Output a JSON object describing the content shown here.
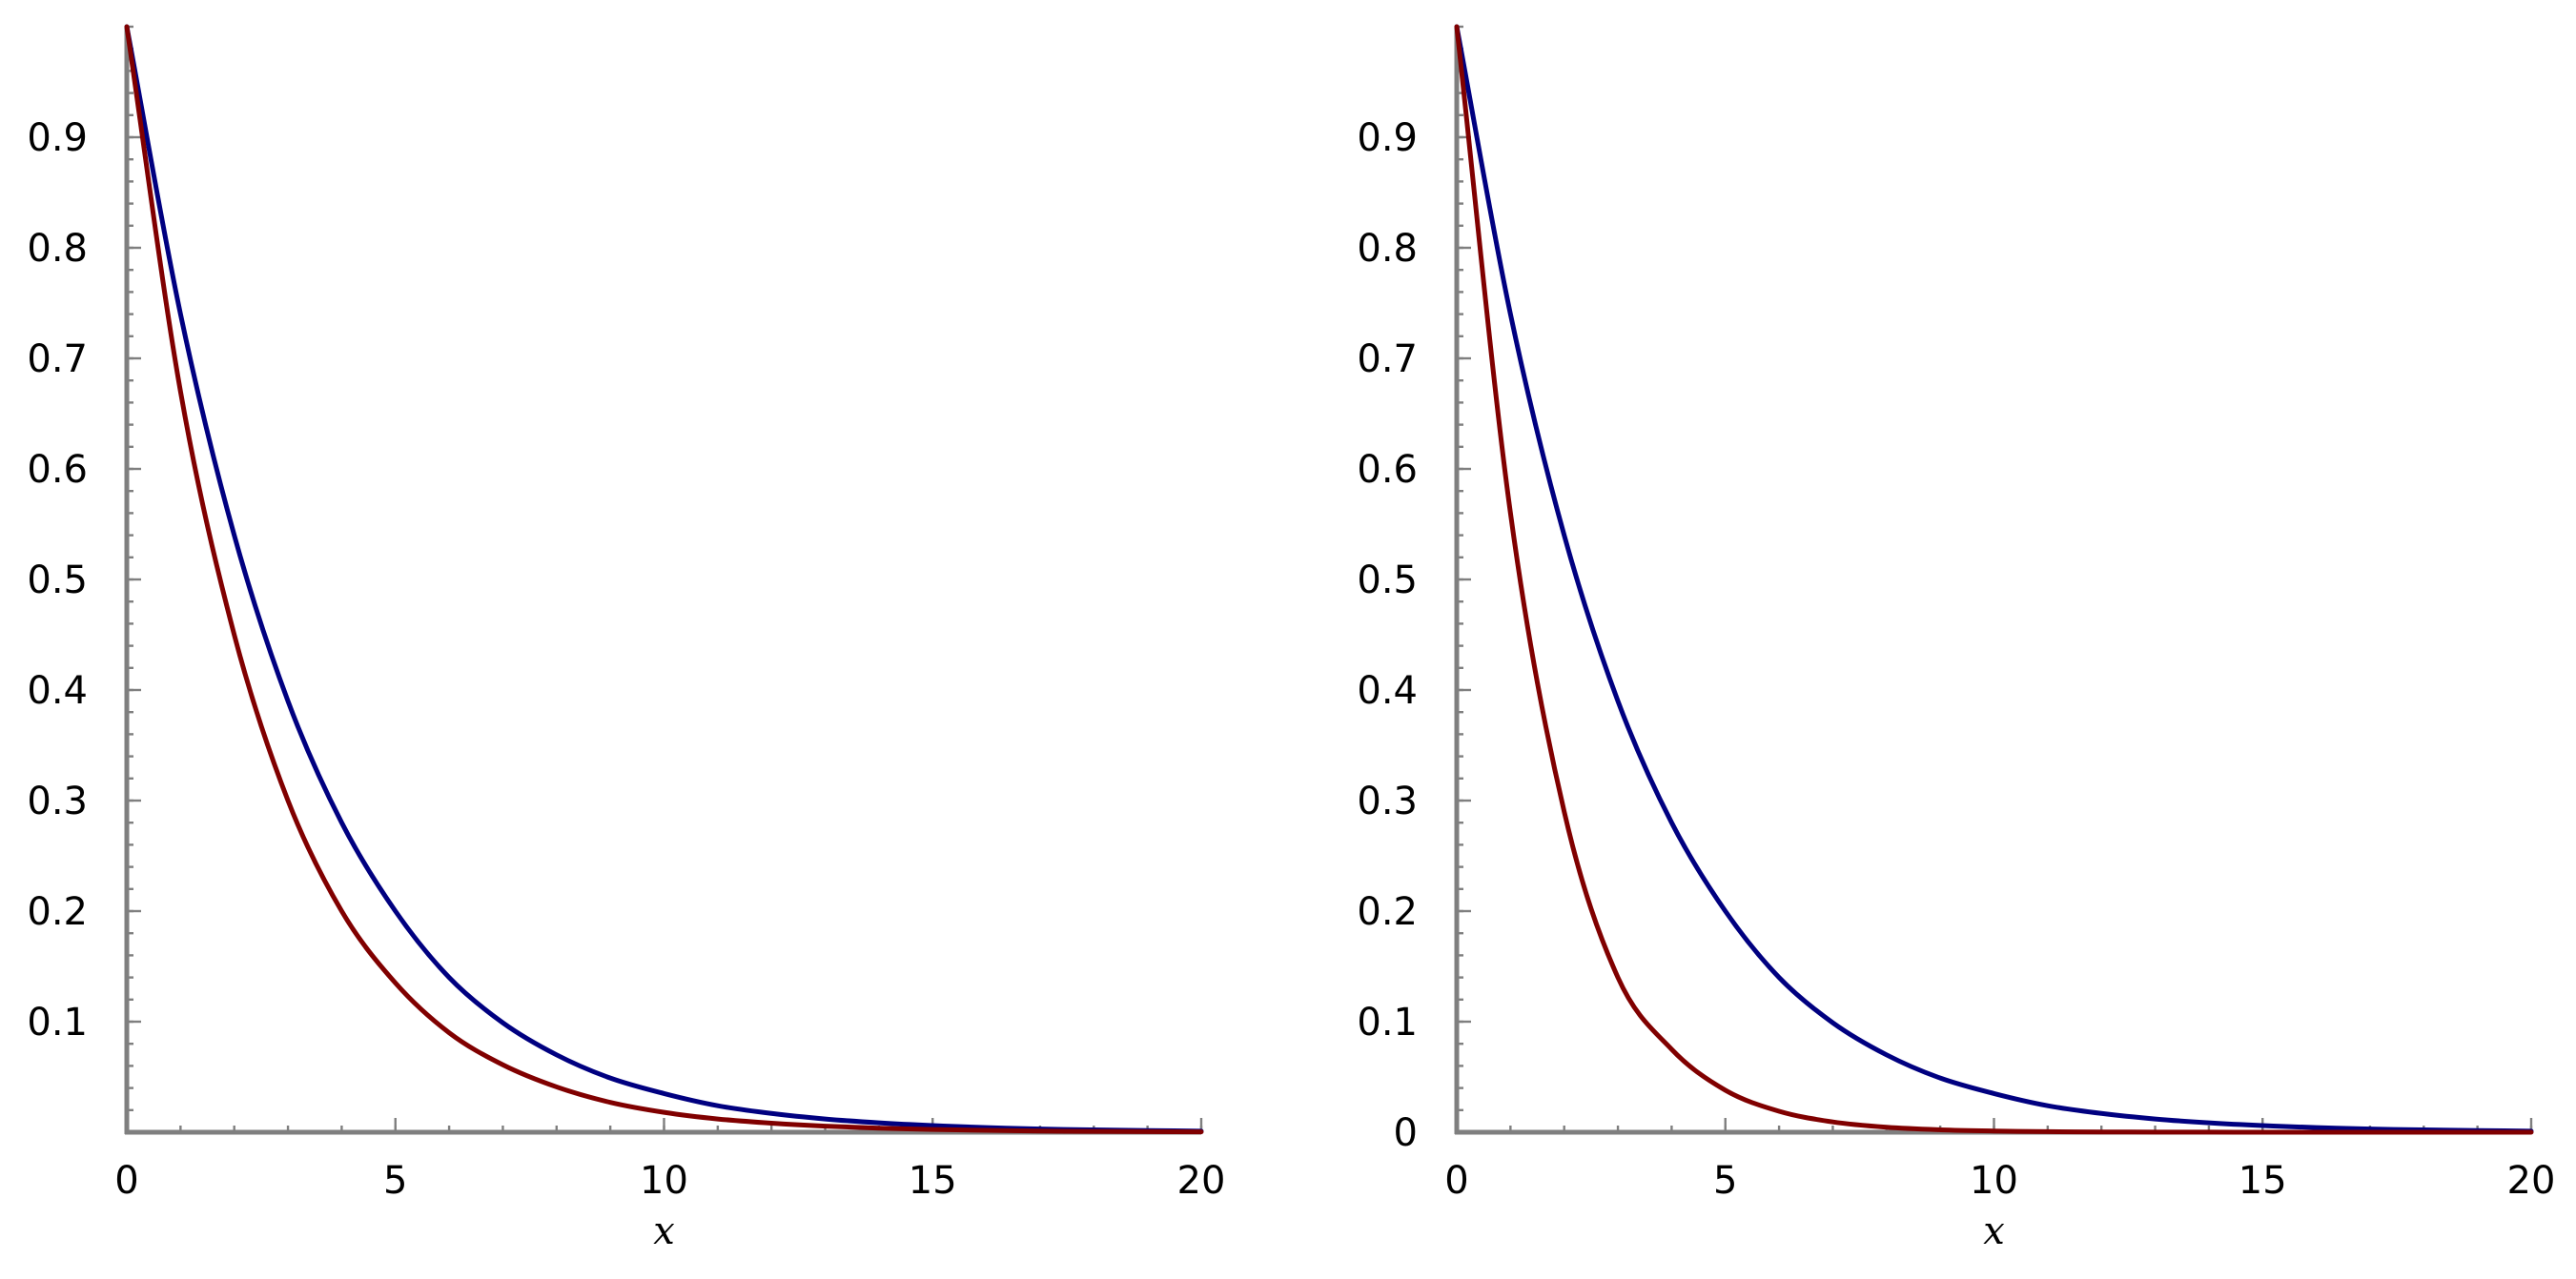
{
  "chart_data": [
    {
      "type": "line",
      "xlabel": "x",
      "ylabel": "",
      "xlim": [
        0,
        20
      ],
      "ylim": [
        0,
        1
      ],
      "grid": false,
      "x_ticks": [
        0,
        5,
        10,
        15,
        20
      ],
      "x_tick_labels": [
        "0",
        "5",
        "10",
        "15",
        "20"
      ],
      "y_ticks": [
        0.1,
        0.2,
        0.3,
        0.4,
        0.5,
        0.6,
        0.7,
        0.8,
        0.9
      ],
      "y_tick_labels": [
        "0.1",
        "0.2",
        "0.3",
        "0.4",
        "0.5",
        "0.6",
        "0.7",
        "0.8",
        "0.9"
      ],
      "x": [
        0,
        1,
        2,
        3,
        4,
        5,
        6,
        7,
        8,
        9,
        10,
        11,
        12,
        13,
        14,
        15,
        16,
        17,
        18,
        19,
        20
      ],
      "series": [
        {
          "color": "#000080",
          "values": [
            1.0,
            0.74,
            0.54,
            0.39,
            0.28,
            0.2,
            0.14,
            0.099,
            0.07,
            0.049,
            0.035,
            0.024,
            0.017,
            0.012,
            0.0085,
            0.006,
            0.0042,
            0.0029,
            0.0021,
            0.0015,
            0.001
          ]
        },
        {
          "color": "#800000",
          "values": [
            1.0,
            0.67,
            0.45,
            0.3,
            0.2,
            0.135,
            0.09,
            0.061,
            0.041,
            0.027,
            0.018,
            0.012,
            0.0082,
            0.0055,
            0.0037,
            0.0025,
            0.0017,
            0.0011,
            0.00075,
            0.0005,
            0.0003
          ]
        }
      ]
    },
    {
      "type": "line",
      "xlabel": "x",
      "ylabel": "",
      "xlim": [
        0,
        20
      ],
      "ylim": [
        0,
        1
      ],
      "grid": false,
      "x_ticks": [
        0,
        5,
        10,
        15,
        20
      ],
      "x_tick_labels": [
        "0",
        "5",
        "10",
        "15",
        "20"
      ],
      "y_ticks": [
        0,
        0.1,
        0.2,
        0.3,
        0.4,
        0.5,
        0.6,
        0.7,
        0.8,
        0.9
      ],
      "y_tick_labels": [
        "0",
        "0.1",
        "0.2",
        "0.3",
        "0.4",
        "0.5",
        "0.6",
        "0.7",
        "0.8",
        "0.9"
      ],
      "x": [
        0,
        1,
        2,
        3,
        4,
        5,
        6,
        7,
        8,
        9,
        10,
        11,
        12,
        13,
        14,
        15,
        16,
        17,
        18,
        19,
        20
      ],
      "series": [
        {
          "color": "#000080",
          "values": [
            1.0,
            0.74,
            0.54,
            0.39,
            0.28,
            0.2,
            0.14,
            0.099,
            0.07,
            0.049,
            0.035,
            0.024,
            0.017,
            0.012,
            0.0085,
            0.006,
            0.0042,
            0.0029,
            0.0021,
            0.0015,
            0.001
          ]
        },
        {
          "color": "#800000",
          "values": [
            1.0,
            0.56,
            0.29,
            0.14,
            0.075,
            0.038,
            0.019,
            0.0093,
            0.0045,
            0.0022,
            0.0011,
            0.0005,
            0.00025,
            0.00012,
            6e-05,
            3e-05,
            1e-05,
            0,
            0,
            0,
            0
          ]
        }
      ]
    }
  ]
}
